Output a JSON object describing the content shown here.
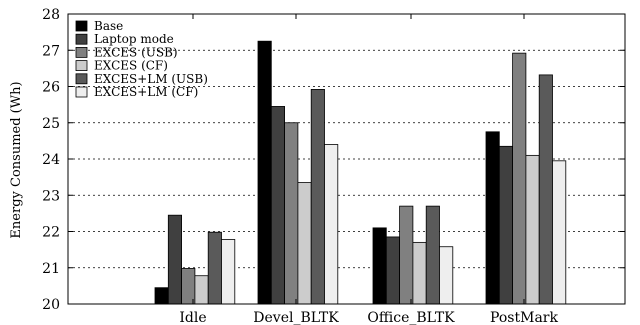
{
  "chart_data": {
    "type": "bar",
    "title": "",
    "xlabel": "",
    "ylabel": "Energy Consumed (Wh)",
    "ylim": [
      20,
      28
    ],
    "yticks": [
      20,
      21,
      22,
      23,
      24,
      25,
      26,
      27,
      28
    ],
    "grid": true,
    "legend_position": "top-left",
    "categories": [
      "Idle",
      "Devel_BLTK",
      "Office_BLTK",
      "PostMark"
    ],
    "series": [
      {
        "name": "Base",
        "color": "#000000",
        "values": [
          20.45,
          27.25,
          22.1,
          24.75
        ]
      },
      {
        "name": "Laptop mode",
        "color": "#404040",
        "values": [
          22.45,
          25.45,
          21.85,
          24.35
        ]
      },
      {
        "name": "EXCES (USB)",
        "color": "#808080",
        "values": [
          20.98,
          25.0,
          22.7,
          26.92
        ]
      },
      {
        "name": "EXCES (CF)",
        "color": "#cccccc",
        "values": [
          20.78,
          23.35,
          21.7,
          24.1
        ]
      },
      {
        "name": "EXCES+LM (USB)",
        "color": "#5a5a5a",
        "values": [
          21.98,
          25.92,
          22.7,
          26.32
        ]
      },
      {
        "name": "EXCES+LM (CF)",
        "color": "#eeeeee",
        "values": [
          21.78,
          24.4,
          21.58,
          23.95
        ]
      }
    ]
  }
}
